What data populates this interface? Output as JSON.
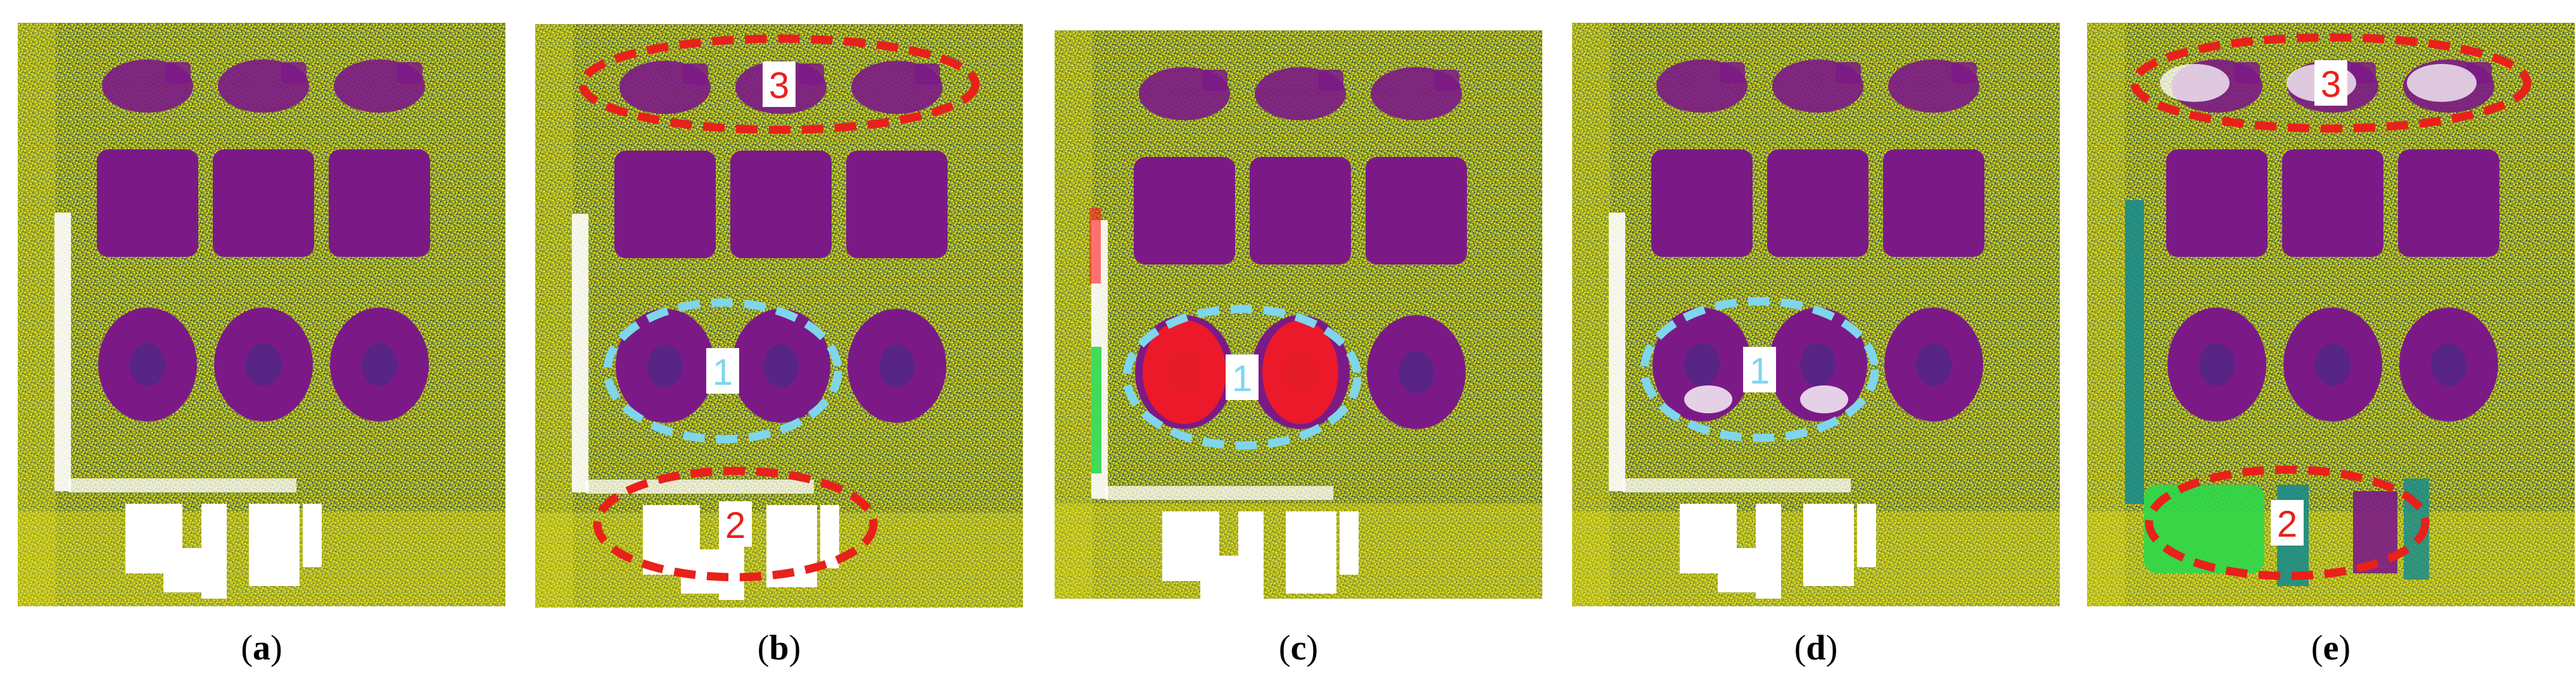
{
  "figure": {
    "panels": [
      {
        "id": "a",
        "label_open": "(",
        "label_letter": "a",
        "label_close": ")",
        "callouts": []
      },
      {
        "id": "b",
        "label_open": "(",
        "label_letter": "b",
        "label_close": ")",
        "callouts": [
          {
            "text": "3",
            "color": "#e8211b",
            "kind": "top"
          },
          {
            "text": "1",
            "color": "#7fd6ec",
            "kind": "mid"
          },
          {
            "text": "2",
            "color": "#e8211b",
            "kind": "bottom"
          }
        ]
      },
      {
        "id": "c",
        "label_open": "(",
        "label_letter": "c",
        "label_close": ")",
        "callouts": [
          {
            "text": "1",
            "color": "#7fd6ec",
            "kind": "mid"
          }
        ]
      },
      {
        "id": "d",
        "label_open": "(",
        "label_letter": "d",
        "label_close": ")",
        "callouts": [
          {
            "text": "1",
            "color": "#7fd6ec",
            "kind": "mid"
          }
        ]
      },
      {
        "id": "e",
        "label_open": "(",
        "label_letter": "e",
        "label_close": ")",
        "callouts": [
          {
            "text": "3",
            "color": "#e8211b",
            "kind": "top"
          },
          {
            "text": "2",
            "color": "#e8211b",
            "kind": "bottom"
          }
        ]
      }
    ],
    "palette": {
      "background": "#8a9a2e",
      "noise_light": "#e9e21a",
      "noise_dark": "#2e4a63",
      "plot": "#7b1a86",
      "plot_core": "#4a2a86",
      "bare": "#ffffff",
      "anomaly_red": "#ff1a1a",
      "anomaly_green": "#2bd84a",
      "anomaly_teal": "#1a8c8a"
    }
  }
}
